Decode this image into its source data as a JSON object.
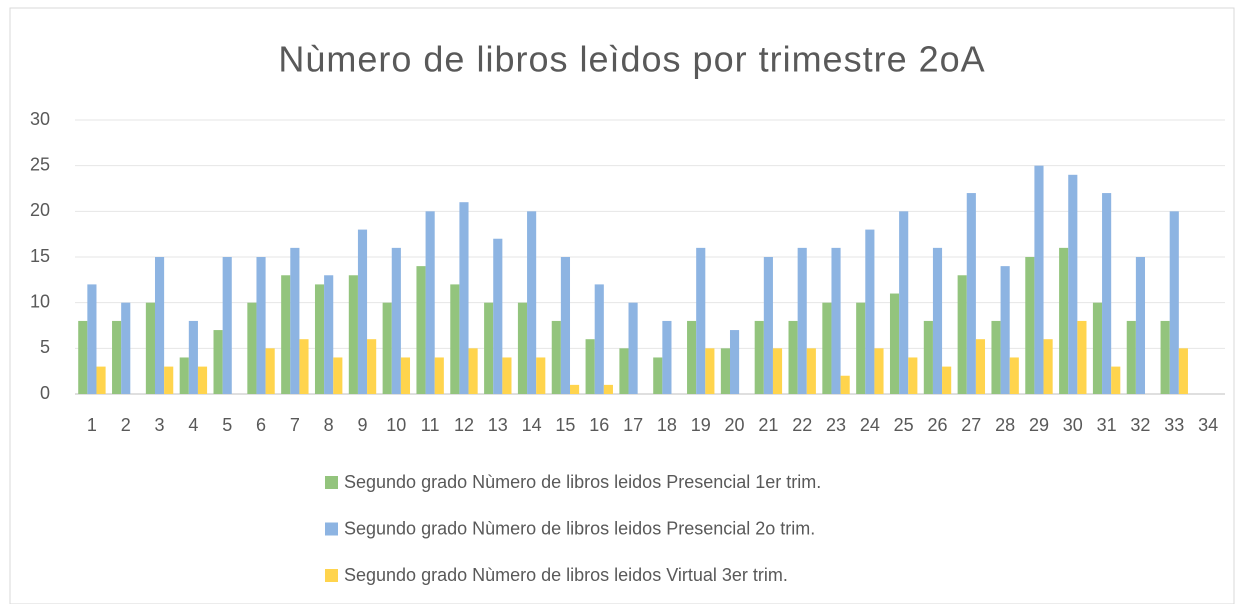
{
  "chart_data": {
    "type": "bar",
    "title": "Nùmero de libros leìdos por trimestre  2oA",
    "categories": [
      "1",
      "2",
      "3",
      "4",
      "5",
      "6",
      "7",
      "8",
      "9",
      "10",
      "11",
      "12",
      "13",
      "14",
      "15",
      "16",
      "17",
      "18",
      "19",
      "20",
      "21",
      "22",
      "23",
      "24",
      "25",
      "26",
      "27",
      "28",
      "29",
      "30",
      "31",
      "32",
      "33",
      "34"
    ],
    "series": [
      {
        "name": "Segundo grado  Nùmero de libros leidos Presencial 1er trim.",
        "color": "#93c47d",
        "values": [
          8,
          8,
          10,
          4,
          7,
          10,
          13,
          12,
          13,
          10,
          14,
          12,
          10,
          10,
          8,
          6,
          5,
          4,
          8,
          5,
          8,
          8,
          10,
          10,
          11,
          8,
          13,
          8,
          15,
          16,
          10,
          8,
          8,
          null
        ]
      },
      {
        "name": "Segundo grado  Nùmero de libros leidos Presencial 2o trim.",
        "color": "#8db4e2",
        "values": [
          12,
          10,
          15,
          8,
          15,
          15,
          16,
          13,
          18,
          16,
          20,
          21,
          17,
          20,
          15,
          12,
          10,
          8,
          16,
          7,
          15,
          16,
          16,
          18,
          20,
          16,
          22,
          14,
          25,
          24,
          22,
          15,
          20,
          null
        ]
      },
      {
        "name": "Segundo grado  Nùmero de libros leidos Virtual 3er trim.",
        "color": "#ffd44d",
        "values": [
          3,
          null,
          3,
          3,
          null,
          5,
          6,
          4,
          6,
          4,
          4,
          5,
          4,
          4,
          1,
          1,
          null,
          null,
          5,
          null,
          5,
          5,
          2,
          5,
          4,
          3,
          6,
          4,
          6,
          8,
          3,
          null,
          5,
          null
        ]
      }
    ],
    "ylim": [
      0,
      30
    ],
    "yticks": [
      0,
      5,
      10,
      15,
      20,
      25,
      30
    ],
    "grid": true,
    "legend": "bottom"
  }
}
